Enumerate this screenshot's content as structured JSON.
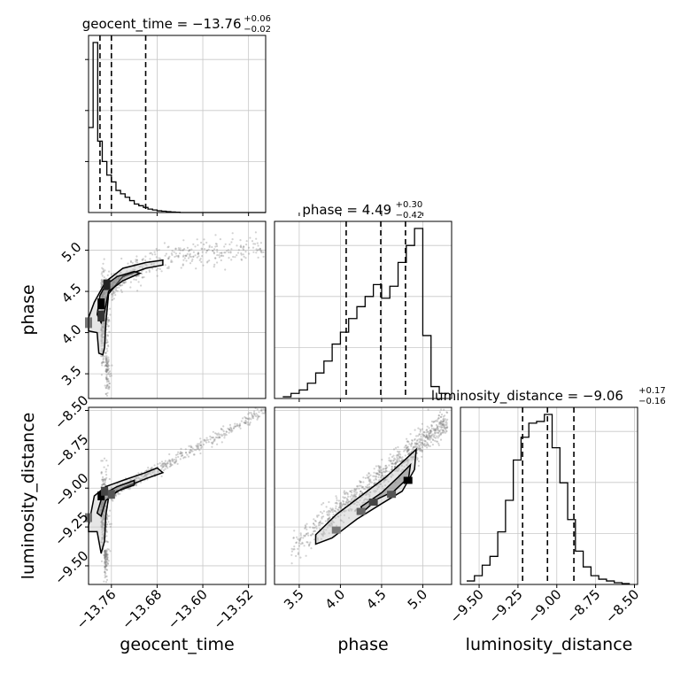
{
  "chart_data": {
    "type": "corner",
    "grid": true,
    "parameters": [
      {
        "name": "geocent_time",
        "axis_label": "geocent_time",
        "title": "geocent_time = −13.76",
        "err_plus": "+0.06",
        "err_minus": "−0.02",
        "range": [
          -13.8,
          -13.49
        ],
        "ticks": [
          -13.76,
          -13.68,
          -13.6,
          -13.52
        ],
        "tick_labels": [
          "−13.76",
          "−13.68",
          "−13.60",
          "−13.52"
        ],
        "quantiles": [
          -13.78,
          -13.76,
          -13.7
        ],
        "histogram": {
          "bin_start": -13.8,
          "bin_width": 0.008,
          "counts": [
            0.5,
            1.0,
            0.42,
            0.3,
            0.22,
            0.18,
            0.13,
            0.11,
            0.09,
            0.07,
            0.05,
            0.04,
            0.03,
            0.02,
            0.015,
            0.01,
            0.008,
            0.005,
            0.003,
            0.002,
            0.0,
            0.0,
            0.0,
            0.0,
            0.0,
            0.0,
            0.0,
            0.0,
            0.0,
            0.0,
            0.0,
            0.0,
            0.0,
            0.0,
            0.0,
            0.0,
            0.0,
            0.0,
            0.0
          ]
        }
      },
      {
        "name": "phase",
        "axis_label": "phase",
        "title": "phase = 4.49",
        "err_plus": "+0.30",
        "err_minus": "−0.42",
        "range": [
          3.2,
          5.35
        ],
        "ticks": [
          3.5,
          4.0,
          4.5,
          5.0
        ],
        "tick_labels": [
          "3.5",
          "4.0",
          "4.5",
          "5.0"
        ],
        "quantiles": [
          4.07,
          4.49,
          4.79
        ],
        "histogram": {
          "bin_start": 3.3,
          "bin_width": 0.1,
          "counts": [
            0.01,
            0.03,
            0.05,
            0.09,
            0.15,
            0.22,
            0.32,
            0.39,
            0.47,
            0.54,
            0.6,
            0.67,
            0.59,
            0.66,
            0.8,
            0.9,
            1.0,
            0.37,
            0.07,
            0.03
          ]
        }
      },
      {
        "name": "luminosity_distance",
        "axis_label": "luminosity_distance",
        "title": "luminosity_distance = −9.06",
        "err_plus": "+0.17",
        "err_minus": "−0.16",
        "range": [
          -9.62,
          -8.48
        ],
        "ticks": [
          -9.5,
          -9.25,
          -9.0,
          -8.75,
          -8.5
        ],
        "tick_labels": [
          "−9.50",
          "−9.25",
          "−9.00",
          "−8.75",
          "−8.50"
        ],
        "quantiles": [
          -9.22,
          -9.06,
          -8.89
        ],
        "histogram": {
          "bin_start": -9.58,
          "bin_width": 0.05,
          "counts": [
            0.02,
            0.05,
            0.11,
            0.16,
            0.3,
            0.48,
            0.71,
            0.84,
            0.92,
            0.93,
            0.97,
            0.78,
            0.58,
            0.37,
            0.19,
            0.1,
            0.05,
            0.03,
            0.02,
            0.01,
            0.005
          ]
        }
      }
    ],
    "pairs": [
      {
        "x": "geocent_time",
        "y": "phase",
        "ylim": [
          3.2,
          5.35
        ]
      },
      {
        "x": "geocent_time",
        "y": "luminosity_distance",
        "ylim": [
          -9.62,
          -8.48
        ]
      },
      {
        "x": "phase",
        "y": "luminosity_distance",
        "ylim": [
          -9.62,
          -8.48
        ]
      }
    ],
    "line_color": "#000000",
    "grid_color": "#c8c8c8",
    "sample_color": "#7f7f7f"
  }
}
